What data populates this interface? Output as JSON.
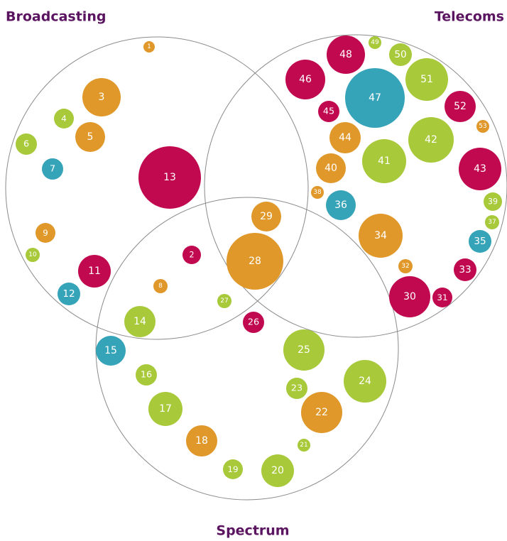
{
  "titles": {
    "broadcasting": "Broadcasting",
    "telecoms": "Telecoms",
    "spectrum": "Spectrum"
  },
  "nodes": [
    {
      "label": "1"
    },
    {
      "label": "3"
    },
    {
      "label": "4"
    },
    {
      "label": "5"
    },
    {
      "label": "6"
    },
    {
      "label": "7"
    },
    {
      "label": "13"
    },
    {
      "label": "9"
    },
    {
      "label": "10"
    },
    {
      "label": "11"
    },
    {
      "label": "12"
    },
    {
      "label": "2"
    },
    {
      "label": "8"
    },
    {
      "label": "14"
    },
    {
      "label": "27"
    },
    {
      "label": "29"
    },
    {
      "label": "28"
    },
    {
      "label": "26"
    },
    {
      "label": "15"
    },
    {
      "label": "16"
    },
    {
      "label": "17"
    },
    {
      "label": "18"
    },
    {
      "label": "19"
    },
    {
      "label": "20"
    },
    {
      "label": "21"
    },
    {
      "label": "22"
    },
    {
      "label": "23"
    },
    {
      "label": "24"
    },
    {
      "label": "25"
    },
    {
      "label": "48"
    },
    {
      "label": "49"
    },
    {
      "label": "50"
    },
    {
      "label": "46"
    },
    {
      "label": "47"
    },
    {
      "label": "51"
    },
    {
      "label": "45"
    },
    {
      "label": "52"
    },
    {
      "label": "53"
    },
    {
      "label": "44"
    },
    {
      "label": "42"
    },
    {
      "label": "41"
    },
    {
      "label": "40"
    },
    {
      "label": "43"
    },
    {
      "label": "38"
    },
    {
      "label": "36"
    },
    {
      "label": "39"
    },
    {
      "label": "37"
    },
    {
      "label": "34"
    },
    {
      "label": "35"
    },
    {
      "label": "32"
    },
    {
      "label": "33"
    },
    {
      "label": "30"
    },
    {
      "label": "31"
    }
  ]
}
